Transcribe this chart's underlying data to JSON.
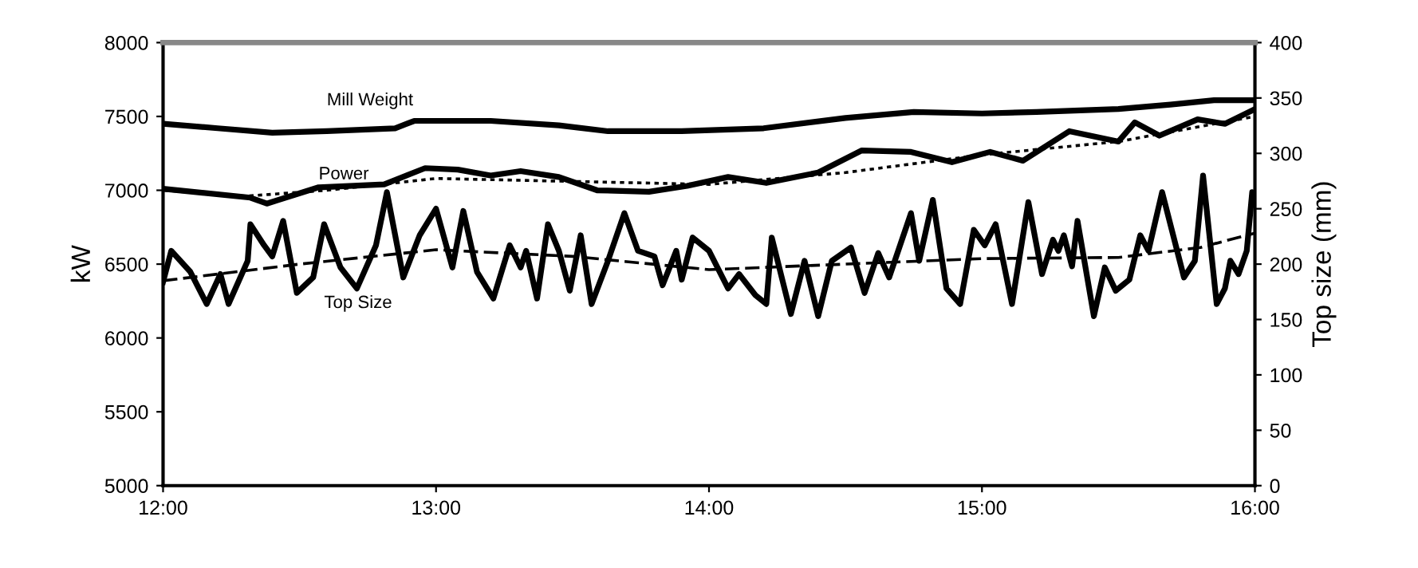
{
  "chart_data": {
    "type": "line",
    "ylabel": "kW",
    "y2label": "Top size (mm)",
    "xlim": [
      12,
      16
    ],
    "xticks": [
      {
        "value": 12,
        "label": "12:00"
      },
      {
        "value": 13,
        "label": "13:00"
      },
      {
        "value": 14,
        "label": "14:00"
      },
      {
        "value": 15,
        "label": "15:00"
      },
      {
        "value": 16,
        "label": "16:00"
      }
    ],
    "ylim": [
      5000,
      8000
    ],
    "yticks": [
      5000,
      5500,
      6000,
      6500,
      7000,
      7500,
      8000
    ],
    "y2lim": [
      0,
      400
    ],
    "y2ticks": [
      0,
      50,
      100,
      150,
      200,
      250,
      300,
      350,
      400
    ],
    "grid": false,
    "legend": false,
    "series": [
      {
        "name": "Mill Weight",
        "color": "#000000",
        "line_style": "solid",
        "x": [
          12.0,
          12.2,
          12.4,
          12.6,
          12.85,
          12.92,
          13.2,
          13.45,
          13.63,
          13.9,
          14.2,
          14.5,
          14.75,
          15.0,
          15.2,
          15.5,
          15.69,
          15.85,
          16.0
        ],
        "values": [
          7450,
          7420,
          7390,
          7400,
          7420,
          7470,
          7470,
          7440,
          7400,
          7400,
          7420,
          7490,
          7530,
          7520,
          7530,
          7550,
          7580,
          7610,
          7610
        ]
      },
      {
        "name": "Power",
        "color": "#000000",
        "line_style": "solid",
        "x": [
          12.0,
          12.32,
          12.38,
          12.57,
          12.81,
          12.96,
          13.08,
          13.2,
          13.31,
          13.45,
          13.59,
          13.78,
          13.92,
          14.07,
          14.21,
          14.4,
          14.56,
          14.74,
          14.89,
          15.03,
          15.15,
          15.32,
          15.5,
          15.56,
          15.65,
          15.79,
          15.89,
          16.0
        ],
        "values": [
          7010,
          6950,
          6910,
          7020,
          7040,
          7150,
          7140,
          7100,
          7130,
          7090,
          7000,
          6990,
          7030,
          7090,
          7050,
          7120,
          7270,
          7260,
          7190,
          7260,
          7200,
          7400,
          7330,
          7460,
          7370,
          7480,
          7450,
          7550
        ]
      },
      {
        "color": "#000000",
        "line_style": "dotted",
        "x": [
          12.0,
          12.3,
          12.6,
          13.0,
          13.5,
          14.0,
          14.5,
          15.0,
          15.5,
          16.0
        ],
        "values": [
          7000,
          6960,
          7000,
          7080,
          7060,
          7040,
          7120,
          7240,
          7330,
          7500
        ]
      },
      {
        "name": "Top Size",
        "color": "#000000",
        "line_style": "solid",
        "axis": "y2",
        "x": [
          12.0,
          12.03,
          12.1,
          12.16,
          12.21,
          12.24,
          12.31,
          12.32,
          12.37,
          12.4,
          12.44,
          12.49,
          12.55,
          12.59,
          12.65,
          12.71,
          12.78,
          12.82,
          12.88,
          12.94,
          13.0,
          13.06,
          13.1,
          13.15,
          13.21,
          13.27,
          13.31,
          13.33,
          13.37,
          13.41,
          13.45,
          13.49,
          13.53,
          13.57,
          13.63,
          13.69,
          13.74,
          13.8,
          13.83,
          13.88,
          13.9,
          13.94,
          14.0,
          14.07,
          14.11,
          14.17,
          14.21,
          14.23,
          14.3,
          14.35,
          14.4,
          14.45,
          14.52,
          14.57,
          14.62,
          14.66,
          14.74,
          14.77,
          14.82,
          14.87,
          14.92,
          14.97,
          15.01,
          15.05,
          15.11,
          15.17,
          15.22,
          15.26,
          15.28,
          15.3,
          15.33,
          15.35,
          15.41,
          15.45,
          15.49,
          15.54,
          15.58,
          15.61,
          15.66,
          15.74,
          15.78,
          15.81,
          15.86,
          15.89,
          15.91,
          15.94,
          15.97,
          15.99,
          16.0
        ],
        "values": [
          184,
          212,
          193,
          164,
          191,
          164,
          203,
          236,
          217,
          207,
          239,
          174,
          188,
          236,
          197,
          178,
          217,
          265,
          188,
          226,
          250,
          197,
          248,
          193,
          169,
          217,
          197,
          212,
          169,
          236,
          212,
          176,
          226,
          164,
          203,
          246,
          212,
          207,
          181,
          212,
          186,
          224,
          212,
          178,
          191,
          172,
          164,
          224,
          155,
          203,
          153,
          203,
          215,
          174,
          210,
          188,
          246,
          203,
          258,
          178,
          164,
          231,
          217,
          236,
          164,
          256,
          191,
          222,
          212,
          226,
          198,
          239,
          153,
          197,
          176,
          186,
          226,
          212,
          265,
          188,
          203,
          280,
          164,
          178,
          203,
          191,
          212,
          265,
          258
        ]
      },
      {
        "color": "#000000",
        "line_style": "dashed",
        "axis": "y2",
        "x": [
          12.0,
          12.5,
          13.0,
          13.5,
          14.0,
          14.5,
          15.0,
          15.5,
          15.8,
          16.0
        ],
        "values": [
          185,
          200,
          213,
          207,
          195,
          200,
          205,
          206,
          215,
          228
        ]
      }
    ]
  }
}
